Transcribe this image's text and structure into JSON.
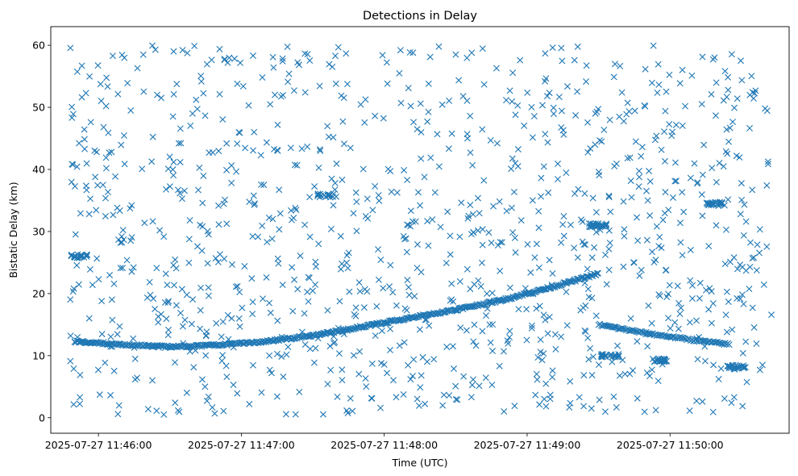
{
  "chart_data": {
    "type": "scatter",
    "title": "Detections in Delay",
    "xlabel": "Time (UTC)",
    "ylabel": "Bistatic Delay (km)",
    "marker": "x",
    "color": "#1f77b4",
    "grid": false,
    "legend": "none",
    "x_unit": "time",
    "xlim": [
      "2025-07-27 11:45:40",
      "2025-07-27 11:50:50"
    ],
    "ylim": [
      -2.5,
      63
    ],
    "x_ticks": [
      "2025-07-27 11:46:00",
      "2025-07-27 11:47:00",
      "2025-07-27 11:48:00",
      "2025-07-27 11:49:00",
      "2025-07-27 11:50:00"
    ],
    "y_ticks": [
      0,
      10,
      20,
      30,
      40,
      50,
      60
    ],
    "target_tracks": [
      {
        "description": "primary track (curved)",
        "points": [
          [
            "2025-07-27 11:45:50",
            12.3
          ],
          [
            "2025-07-27 11:46:10",
            11.8
          ],
          [
            "2025-07-27 11:46:30",
            11.4
          ],
          [
            "2025-07-27 11:46:50",
            11.7
          ],
          [
            "2025-07-27 11:47:10",
            12.3
          ],
          [
            "2025-07-27 11:47:30",
            13.2
          ],
          [
            "2025-07-27 11:47:50",
            14.6
          ],
          [
            "2025-07-27 11:48:10",
            16.0
          ],
          [
            "2025-07-27 11:48:30",
            17.4
          ],
          [
            "2025-07-27 11:48:50",
            19.0
          ],
          [
            "2025-07-27 11:49:10",
            21.0
          ],
          [
            "2025-07-27 11:49:30",
            23.2
          ]
        ]
      },
      {
        "description": "receding track",
        "points": [
          [
            "2025-07-27 11:49:30",
            15.0
          ],
          [
            "2025-07-27 11:49:50",
            13.6
          ],
          [
            "2025-07-27 11:50:10",
            12.5
          ],
          [
            "2025-07-27 11:50:25",
            11.8
          ]
        ]
      },
      {
        "description": "constant-delay segments",
        "points": [
          [
            "2025-07-27 11:45:52",
            26.0
          ],
          [
            "2025-07-27 11:47:36",
            35.8
          ],
          [
            "2025-07-27 11:49:30",
            31.0
          ],
          [
            "2025-07-27 11:50:18",
            34.5
          ],
          [
            "2025-07-27 11:50:28",
            8.2
          ],
          [
            "2025-07-27 11:49:35",
            10.0
          ],
          [
            "2025-07-27 11:49:55",
            9.3
          ]
        ]
      }
    ],
    "clutter_points_approx_count": 1100,
    "clutter_range_km": [
      0.5,
      60
    ]
  }
}
